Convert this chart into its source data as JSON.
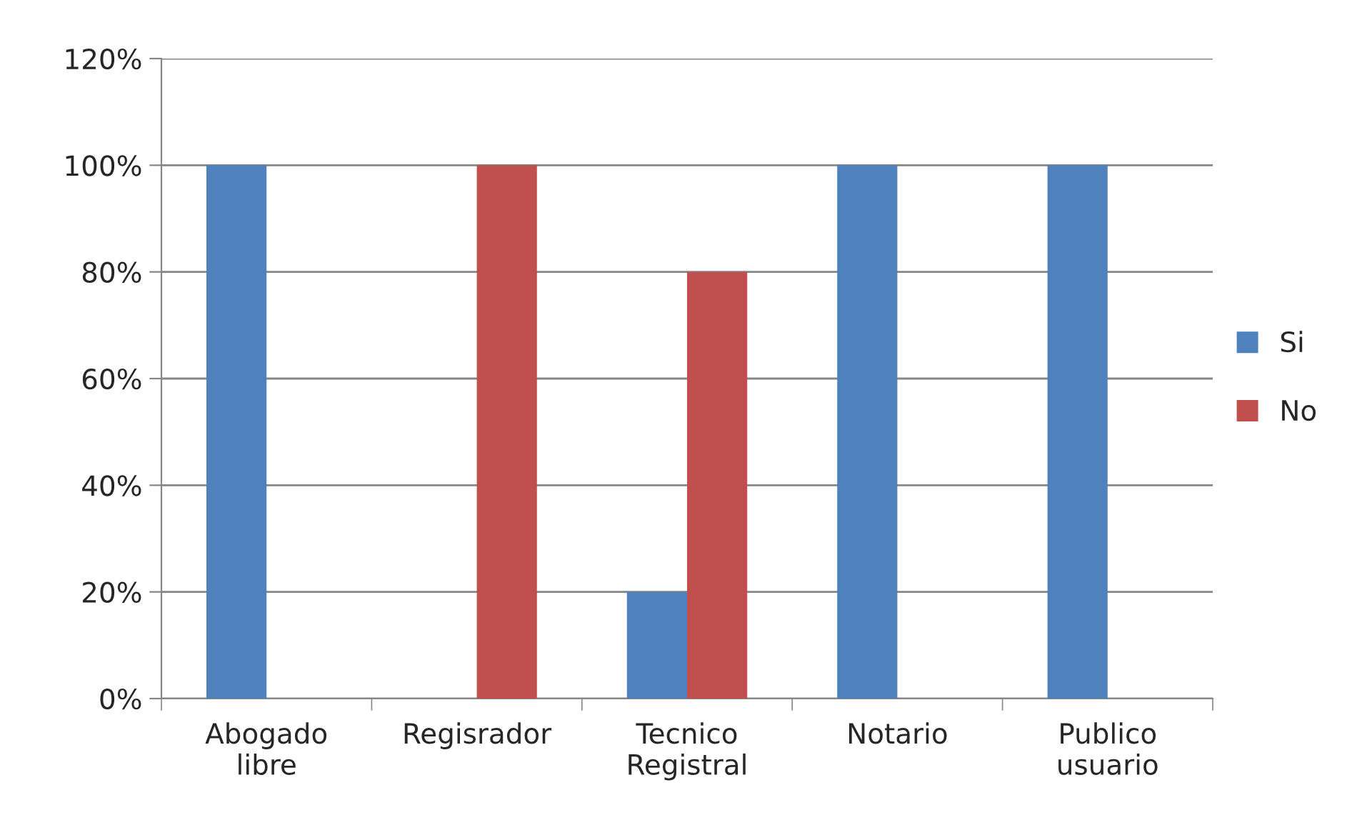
{
  "chart_data": {
    "type": "bar",
    "categories": [
      "Abogado\nlibre",
      "Regisrador",
      "Tecnico\nRegistral",
      "Notario",
      "Publico\nusuario"
    ],
    "series": [
      {
        "name": "Si",
        "color": "#4f81bd",
        "values": [
          100,
          null,
          20,
          100,
          100
        ]
      },
      {
        "name": "No",
        "color": "#c0504d",
        "values": [
          null,
          100,
          80,
          null,
          null
        ]
      }
    ],
    "ylim": [
      0,
      120
    ],
    "yticks": [
      {
        "value": 0,
        "label": "0%"
      },
      {
        "value": 20,
        "label": "20%"
      },
      {
        "value": 40,
        "label": "40%"
      },
      {
        "value": 60,
        "label": "60%"
      },
      {
        "value": 80,
        "label": "80%"
      },
      {
        "value": 100,
        "label": "100%"
      },
      {
        "value": 120,
        "label": "120%"
      }
    ],
    "grid": "y",
    "legend": "right"
  }
}
